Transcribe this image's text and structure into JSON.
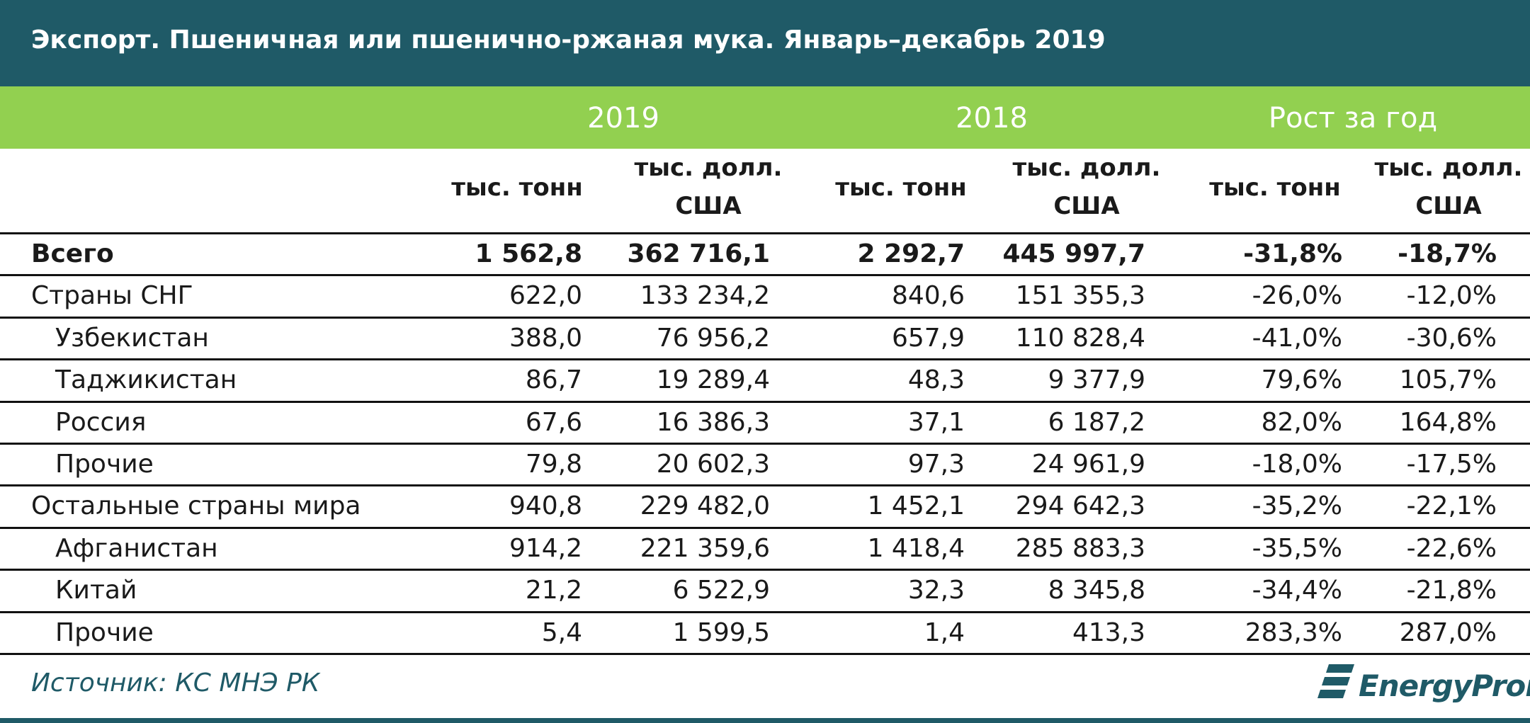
{
  "colors": {
    "header_bg": "#1f5a67",
    "year_bg": "#92d050",
    "accent": "#1f5a67"
  },
  "title": "Экспорт. Пшеничная или пшенично-ржаная мука. Январь–декабрь 2019",
  "years": [
    "2019",
    "2018",
    "Рост за год"
  ],
  "units": {
    "tonnes": "тыс. тонн",
    "usd_line1": "тыс. долл.",
    "usd_line2": "США"
  },
  "source": "Источник: КС МНЭ РК",
  "logo_text": "EnergyProm",
  "chart_data": {
    "type": "table",
    "title": "Экспорт. Пшеничная или пшенично-ржаная мука. Январь–декабрь 2019",
    "column_groups": [
      "2019",
      "2018",
      "Рост за год"
    ],
    "columns": [
      "тыс. тонн",
      "тыс. долл. США",
      "тыс. тонн",
      "тыс. долл. США",
      "тыс. тонн",
      "тыс. долл. США"
    ],
    "rows": [
      {
        "name": "Всего",
        "level": 0,
        "bold": true,
        "values": [
          "1 562,8",
          "362 716,1",
          "2 292,7",
          "445 997,7",
          "-31,8%",
          "-18,7%"
        ]
      },
      {
        "name": "Страны СНГ",
        "level": 0,
        "bold": false,
        "values": [
          "622,0",
          "133 234,2",
          "840,6",
          "151 355,3",
          "-26,0%",
          "-12,0%"
        ]
      },
      {
        "name": "Узбекистан",
        "level": 1,
        "bold": false,
        "values": [
          "388,0",
          "76 956,2",
          "657,9",
          "110 828,4",
          "-41,0%",
          "-30,6%"
        ]
      },
      {
        "name": "Таджикистан",
        "level": 1,
        "bold": false,
        "values": [
          "86,7",
          "19 289,4",
          "48,3",
          "9 377,9",
          "79,6%",
          "105,7%"
        ]
      },
      {
        "name": "Россия",
        "level": 1,
        "bold": false,
        "values": [
          "67,6",
          "16 386,3",
          "37,1",
          "6 187,2",
          "82,0%",
          "164,8%"
        ]
      },
      {
        "name": "Прочие",
        "level": 1,
        "bold": false,
        "values": [
          "79,8",
          "20 602,3",
          "97,3",
          "24 961,9",
          "-18,0%",
          "-17,5%"
        ]
      },
      {
        "name": "Остальные страны мира",
        "level": 0,
        "bold": false,
        "values": [
          "940,8",
          "229 482,0",
          "1 452,1",
          "294 642,3",
          "-35,2%",
          "-22,1%"
        ]
      },
      {
        "name": "Афганистан",
        "level": 1,
        "bold": false,
        "values": [
          "914,2",
          "221 359,6",
          "1 418,4",
          "285 883,3",
          "-35,5%",
          "-22,6%"
        ]
      },
      {
        "name": "Китай",
        "level": 1,
        "bold": false,
        "values": [
          "21,2",
          "6 522,9",
          "32,3",
          "8 345,8",
          "-34,4%",
          "-21,8%"
        ]
      },
      {
        "name": "Прочие",
        "level": 1,
        "bold": false,
        "values": [
          "5,4",
          "1 599,5",
          "1,4",
          "413,3",
          "283,3%",
          "287,0%"
        ]
      }
    ]
  }
}
